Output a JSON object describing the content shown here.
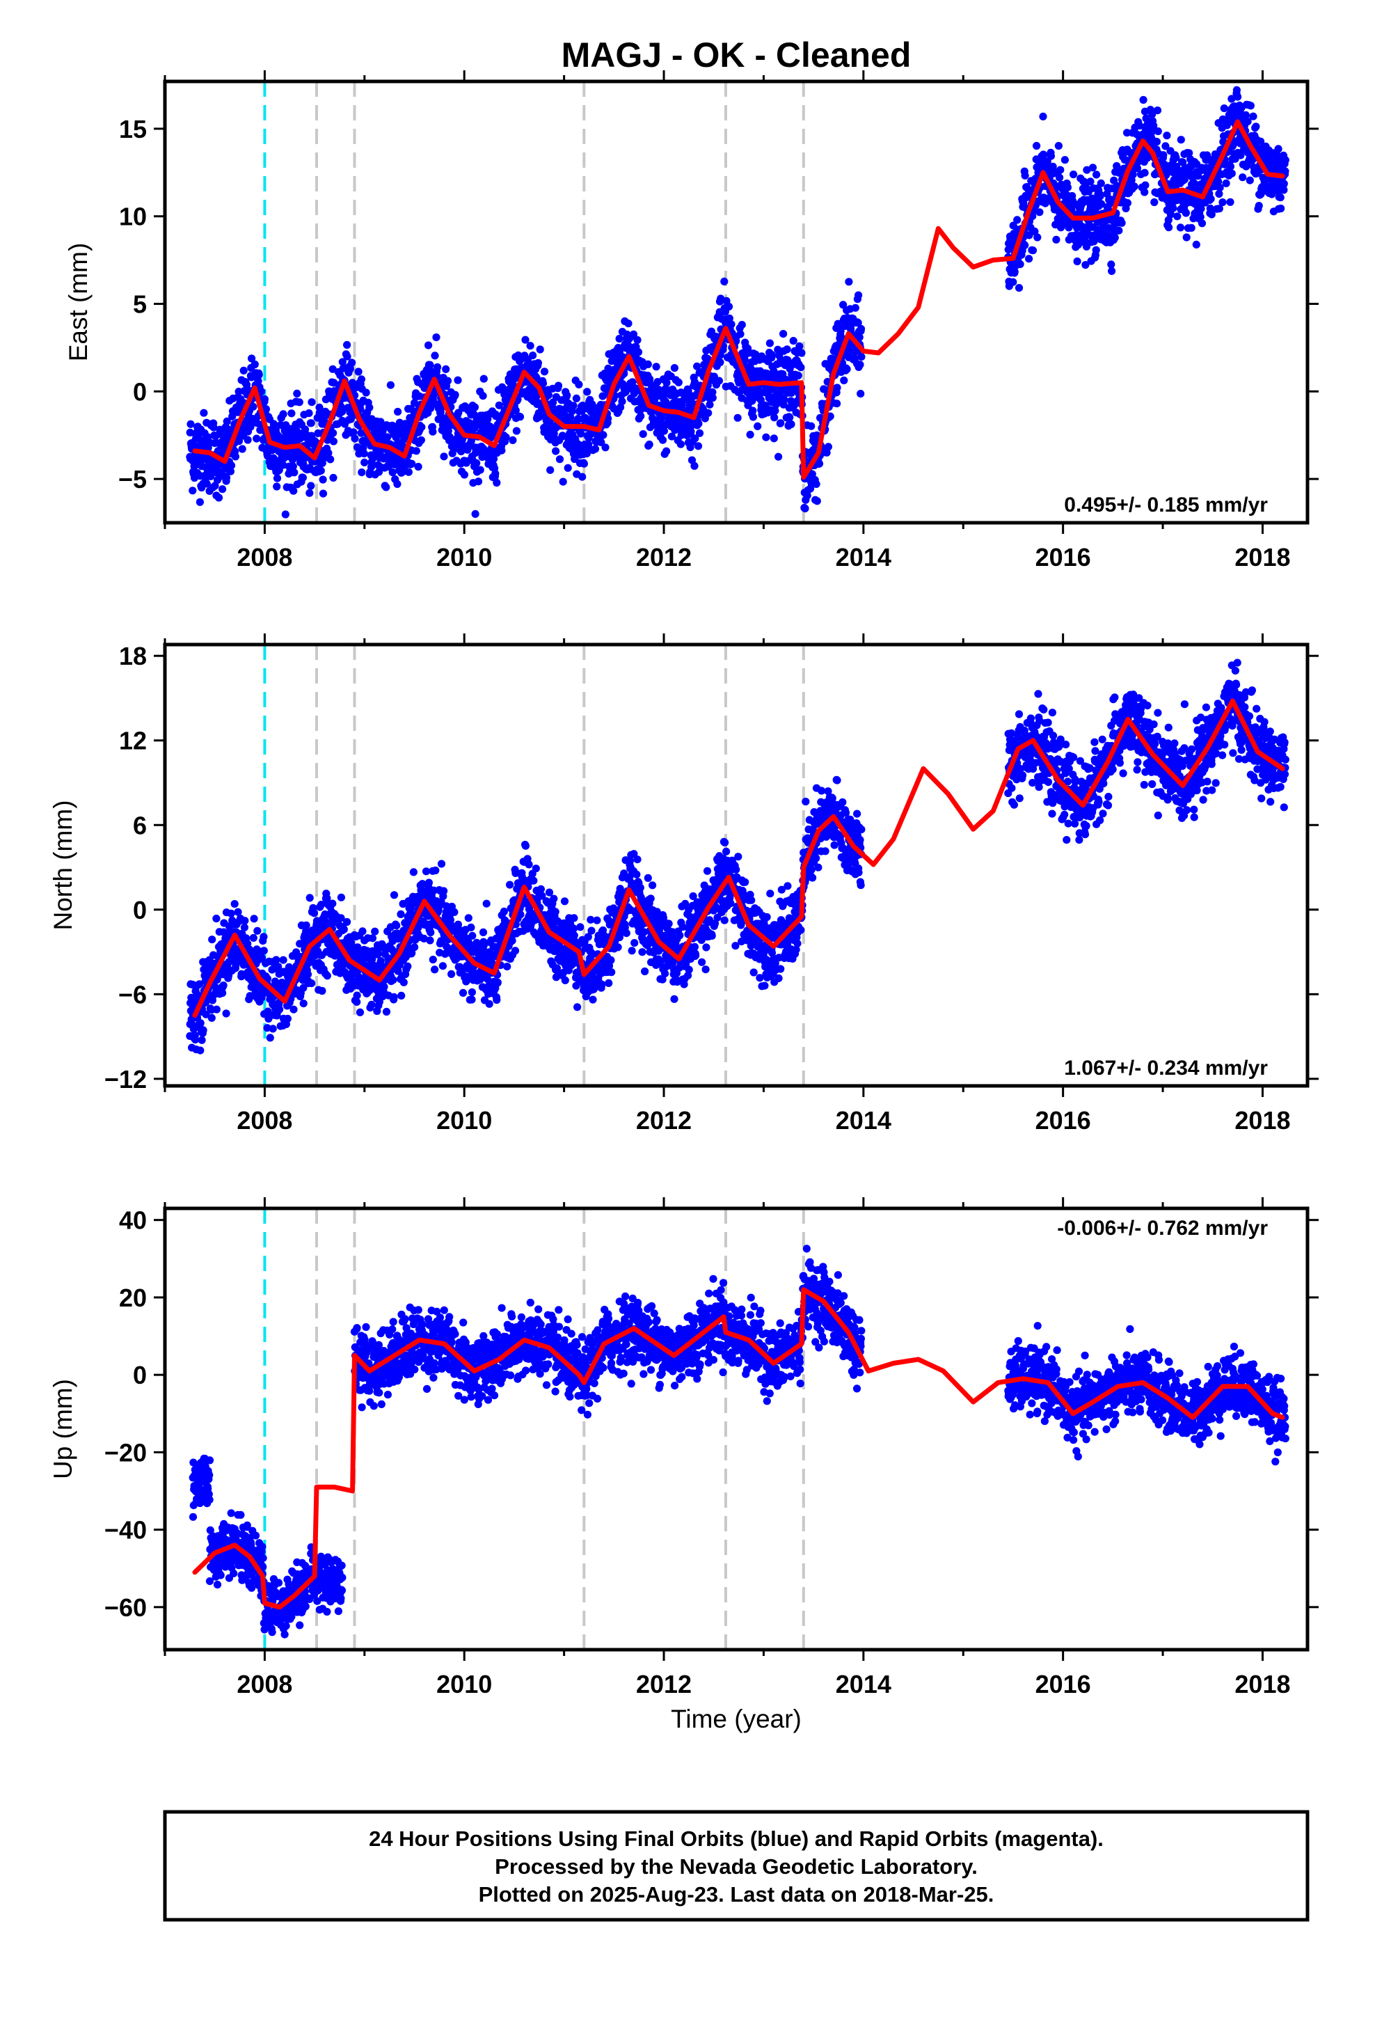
{
  "title": "MAGJ  - OK - Cleaned",
  "colors": {
    "final_points": "#0000ff",
    "model": "#ff0000",
    "cyan_line": "#00e5ee",
    "gray_lines": "#c8c8c8",
    "frame": "#000000"
  },
  "xaxis": {
    "label": "Time (year)",
    "range": [
      2007.0,
      2018.45
    ],
    "ticks": [
      2008,
      2010,
      2012,
      2014,
      2016,
      2018
    ],
    "tick_labels": [
      "2008",
      "2010",
      "2012",
      "2014",
      "2016",
      "2018"
    ],
    "minor_step": 1
  },
  "event_lines": {
    "cyan": [
      2008.0
    ],
    "gray": [
      2008.52,
      2008.9,
      2011.2,
      2012.62,
      2013.4
    ]
  },
  "notes": {
    "line1": "24 Hour Positions Using Final Orbits (blue) and Rapid Orbits (magenta).",
    "line2": "Processed by the Nevada Geodetic Laboratory.",
    "line3": "Plotted on 2025-Aug-23. Last data on 2018-Mar-25."
  },
  "chart_data": [
    {
      "type": "scatter",
      "component": "east",
      "ylabel": "East (mm)",
      "ylim": [
        -7.5,
        17.7
      ],
      "yticks": [
        -5,
        0,
        5,
        10,
        15
      ],
      "ytick_labels": [
        "-5",
        "0",
        "5",
        "10",
        "15"
      ],
      "rate_label": "0.495+/- 0.185 mm/yr",
      "rate_position": "bottom-right",
      "model": {
        "name": "",
        "x": [
          2007.3,
          2007.45,
          2007.6,
          2007.75,
          2007.9,
          2008.05,
          2008.2,
          2008.35,
          2008.5,
          2008.65,
          2008.8,
          2008.95,
          2009.1,
          2009.25,
          2009.4,
          2009.55,
          2009.7,
          2009.85,
          2010.0,
          2010.15,
          2010.3,
          2010.45,
          2010.6,
          2010.75,
          2010.85,
          2011.0,
          2011.2,
          2011.35,
          2011.5,
          2011.65,
          2011.85,
          2012.0,
          2012.15,
          2012.3,
          2012.45,
          2012.62,
          2012.75,
          2012.85,
          2013.0,
          2013.15,
          2013.38,
          2013.4,
          2013.55,
          2013.7,
          2013.85,
          2014.0,
          2014.15,
          2014.35,
          2014.55,
          2014.75,
          2014.9,
          2015.1,
          2015.3,
          2015.5,
          2015.65,
          2015.8,
          2015.95,
          2016.1,
          2016.3,
          2016.5,
          2016.65,
          2016.8,
          2016.9,
          2017.05,
          2017.2,
          2017.4,
          2017.6,
          2017.75,
          2017.88,
          2018.05,
          2018.2
        ],
        "y": [
          -3.4,
          -3.5,
          -4.0,
          -1.7,
          0.2,
          -2.9,
          -3.2,
          -3.1,
          -3.8,
          -1.8,
          0.6,
          -1.6,
          -3.0,
          -3.2,
          -3.7,
          -1.2,
          0.7,
          -1.3,
          -2.5,
          -2.6,
          -3.1,
          -1.0,
          1.1,
          0.2,
          -1.3,
          -2.0,
          -2.0,
          -2.2,
          0.4,
          2.0,
          -0.8,
          -1.1,
          -1.2,
          -1.5,
          1.2,
          3.6,
          1.8,
          0.4,
          0.5,
          0.4,
          0.5,
          -4.9,
          -3.5,
          1.0,
          3.3,
          2.3,
          2.2,
          3.3,
          4.8,
          9.3,
          8.2,
          7.1,
          7.5,
          7.6,
          10.2,
          12.5,
          10.8,
          9.9,
          9.9,
          10.2,
          12.6,
          14.3,
          13.6,
          11.4,
          11.5,
          11.1,
          13.5,
          15.4,
          14.0,
          12.4,
          12.3
        ]
      },
      "final_segments": [
        {
          "start": 2007.25,
          "end": 2013.98,
          "offset": 0.0,
          "spread": 1.1
        },
        {
          "start": 2015.45,
          "end": 2018.23,
          "offset": 0.0,
          "spread": 1.1
        }
      ]
    },
    {
      "type": "scatter",
      "component": "north",
      "ylabel": "North (mm)",
      "ylim": [
        -12.5,
        18.8
      ],
      "yticks": [
        -12,
        -6,
        0,
        6,
        12,
        18
      ],
      "ytick_labels": [
        "-12",
        "-6",
        "0",
        "6",
        "12",
        "18"
      ],
      "rate_label": "1.067+/- 0.234 mm/yr",
      "rate_position": "bottom-right",
      "model": {
        "name": "",
        "x": [
          2007.3,
          2007.45,
          2007.7,
          2007.95,
          2008.2,
          2008.45,
          2008.65,
          2008.85,
          2009.15,
          2009.35,
          2009.6,
          2009.85,
          2010.1,
          2010.3,
          2010.6,
          2010.85,
          2011.15,
          2011.2,
          2011.45,
          2011.65,
          2011.95,
          2012.15,
          2012.45,
          2012.65,
          2012.85,
          2013.1,
          2013.38,
          2013.4,
          2013.55,
          2013.7,
          2013.9,
          2014.1,
          2014.3,
          2014.6,
          2014.85,
          2015.1,
          2015.3,
          2015.55,
          2015.7,
          2015.95,
          2016.2,
          2016.45,
          2016.65,
          2016.9,
          2017.2,
          2017.45,
          2017.7,
          2017.95,
          2018.2
        ],
        "y": [
          -7.5,
          -5.2,
          -1.8,
          -4.9,
          -6.5,
          -2.6,
          -1.4,
          -3.6,
          -5.0,
          -3.1,
          0.6,
          -1.8,
          -3.8,
          -4.5,
          1.6,
          -1.6,
          -3.0,
          -4.6,
          -2.6,
          1.4,
          -2.3,
          -3.5,
          0.2,
          2.3,
          -1.1,
          -2.6,
          -0.5,
          3.0,
          5.6,
          6.6,
          4.5,
          3.2,
          5.0,
          10.0,
          8.2,
          5.7,
          7.0,
          11.4,
          12.0,
          9.2,
          7.4,
          10.5,
          13.5,
          11.0,
          8.8,
          11.5,
          14.8,
          11.2,
          10.0
        ]
      },
      "final_segments": [
        {
          "start": 2007.25,
          "end": 2013.98,
          "offset": 0.0,
          "spread": 1.3
        },
        {
          "start": 2015.45,
          "end": 2018.23,
          "offset": 0.0,
          "spread": 1.3
        }
      ]
    },
    {
      "type": "scatter",
      "component": "up",
      "ylabel": "Up (mm)",
      "ylim": [
        -71,
        43
      ],
      "yticks": [
        -60,
        -40,
        -20,
        0,
        20,
        40
      ],
      "ytick_labels": [
        "-60",
        "-40",
        "-20",
        "0",
        "20",
        "40"
      ],
      "rate_label": "-0.006+/- 0.762 mm/yr",
      "rate_position": "top-right",
      "model": {
        "name": "",
        "x": [
          2007.3,
          2007.5,
          2007.7,
          2007.85,
          2007.98,
          2008.0,
          2008.15,
          2008.3,
          2008.5,
          2008.52,
          2008.7,
          2008.88,
          2008.9,
          2009.05,
          2009.3,
          2009.55,
          2009.8,
          2010.1,
          2010.35,
          2010.6,
          2010.85,
          2011.15,
          2011.2,
          2011.4,
          2011.7,
          2012.1,
          2012.35,
          2012.6,
          2012.62,
          2012.85,
          2013.1,
          2013.38,
          2013.4,
          2013.6,
          2013.85,
          2014.05,
          2014.3,
          2014.55,
          2014.8,
          2015.1,
          2015.35,
          2015.6,
          2015.85,
          2016.1,
          2016.3,
          2016.55,
          2016.8,
          2017.05,
          2017.3,
          2017.6,
          2017.85,
          2018.1,
          2018.2
        ],
        "y": [
          -51,
          -46,
          -44,
          -47,
          -52,
          -59,
          -60,
          -57,
          -52,
          -29,
          -29,
          -30,
          5,
          1,
          5,
          9,
          8,
          1,
          4,
          9,
          7,
          0,
          -2,
          8,
          12,
          5,
          10,
          15,
          11,
          9,
          3,
          8,
          22,
          19,
          11,
          1,
          3,
          4,
          1,
          -7,
          -2,
          -1,
          -2,
          -10,
          -7,
          -3,
          -2,
          -6,
          -11,
          -3,
          -3,
          -10,
          -11
        ]
      },
      "final_segments": [
        {
          "start": 2007.28,
          "end": 2007.45,
          "offset": 21.0,
          "spread": 3.2
        },
        {
          "start": 2007.45,
          "end": 2008.5,
          "offset": 0.0,
          "spread": 3.5
        },
        {
          "start": 2008.52,
          "end": 2008.78,
          "offset": -24.0,
          "spread": 3.5
        },
        {
          "start": 2008.9,
          "end": 2013.98,
          "offset": 0.0,
          "spread": 4.2
        },
        {
          "start": 2015.45,
          "end": 2018.23,
          "offset": 0.0,
          "spread": 4.0
        }
      ]
    }
  ]
}
